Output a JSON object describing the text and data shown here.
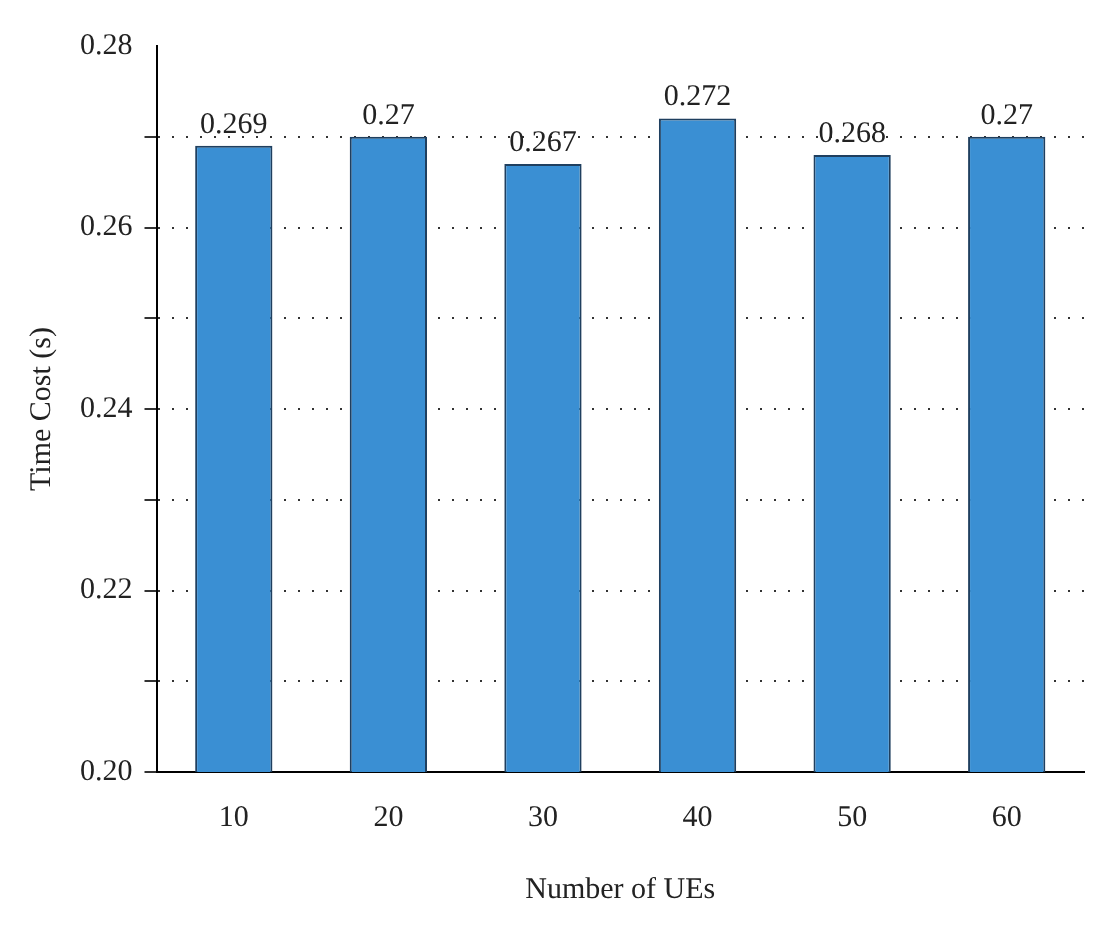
{
  "chart_data": {
    "type": "bar",
    "xlabel": "Number of UEs",
    "ylabel": "Time Cost (s)",
    "categories": [
      "10",
      "20",
      "30",
      "40",
      "50",
      "60"
    ],
    "values": [
      0.269,
      0.27,
      0.267,
      0.272,
      0.268,
      0.27
    ],
    "color": "#3a8fd3",
    "ylim": [
      0.2,
      0.28
    ],
    "yticks": [
      {
        "value": 0.2,
        "label": "0.20"
      },
      {
        "value": 0.21,
        "label": null
      },
      {
        "value": 0.22,
        "label": "0.22"
      },
      {
        "value": 0.23,
        "label": null
      },
      {
        "value": 0.24,
        "label": "0.24"
      },
      {
        "value": 0.25,
        "label": null
      },
      {
        "value": 0.26,
        "label": "0.26"
      },
      {
        "value": 0.27,
        "label": null
      },
      {
        "value": 0.28,
        "label": "0.28"
      }
    ],
    "grid": "y",
    "data_labels": true,
    "legend": false
  }
}
